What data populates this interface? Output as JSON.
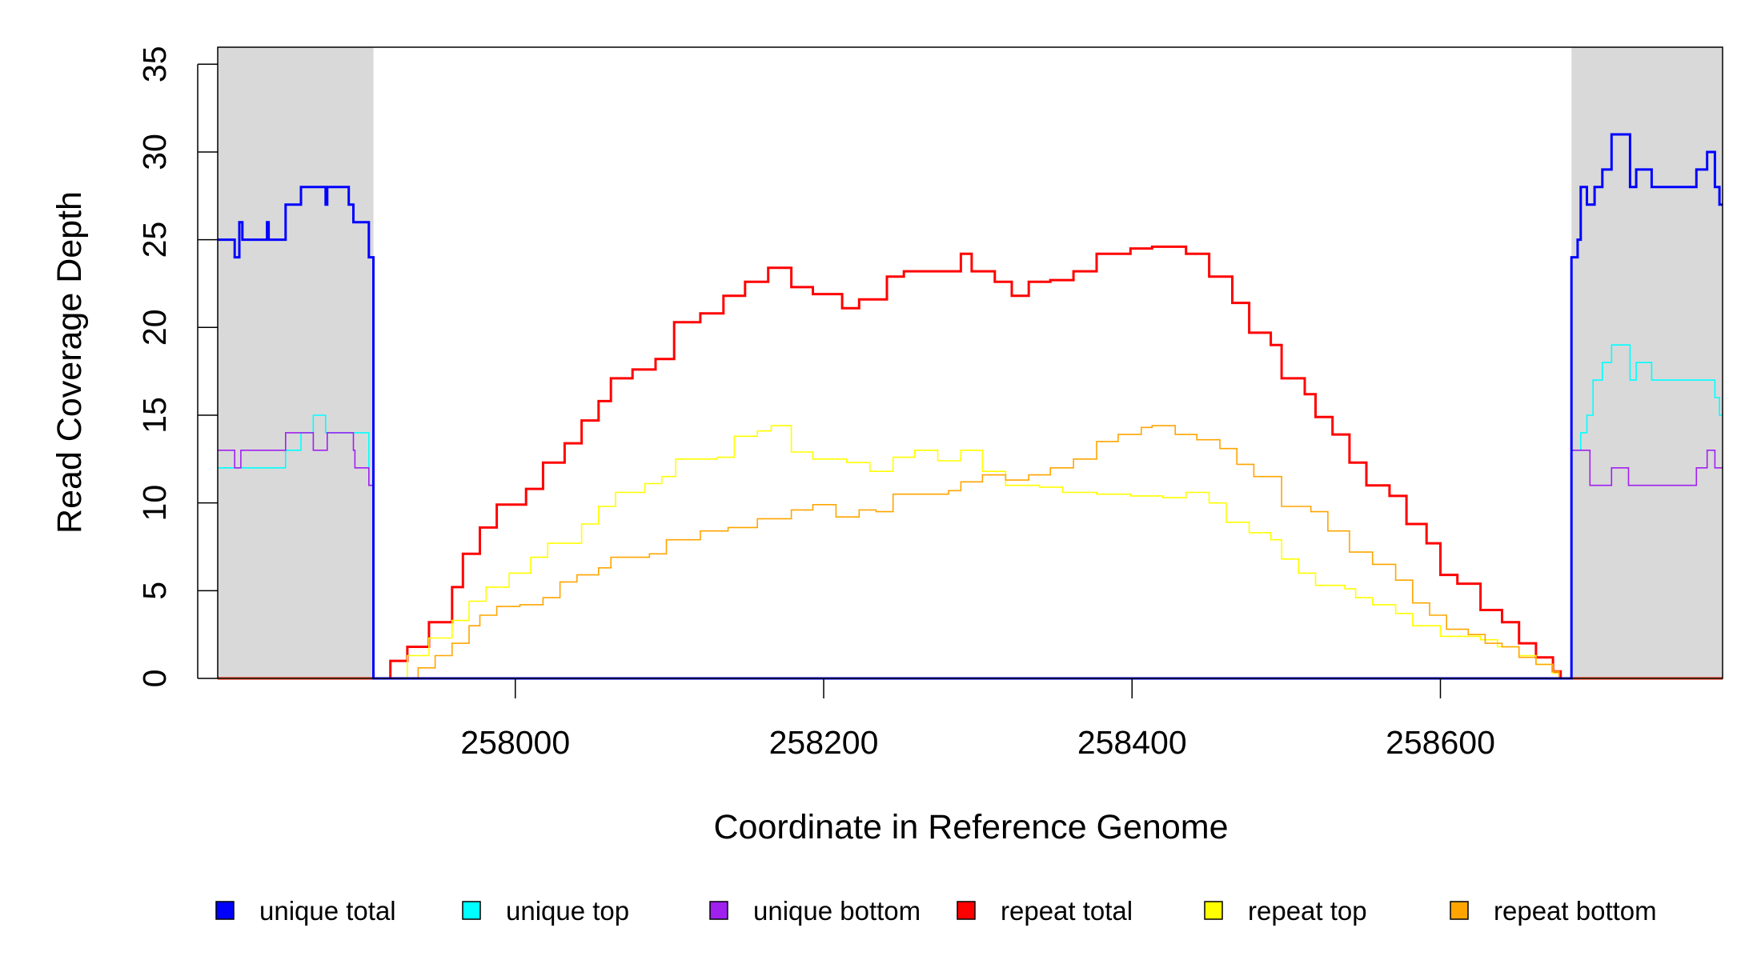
{
  "chart_data": {
    "type": "line",
    "title": "",
    "xlabel": "Coordinate in Reference Genome",
    "ylabel": "Read Coverage Depth",
    "xlim": [
      257807,
      258783
    ],
    "ylim": [
      0,
      35.97
    ],
    "x_ticks": [
      258000,
      258200,
      258400,
      258600
    ],
    "x_tick_labels": [
      "258000",
      "258200",
      "258400",
      "258600"
    ],
    "y_ticks": [
      0,
      5,
      10,
      15,
      20,
      25,
      30,
      35
    ],
    "y_tick_labels": [
      "0",
      "5",
      "10",
      "15",
      "20",
      "25",
      "30",
      "35"
    ],
    "grid": false,
    "legend_placement": "bottom",
    "shaded_regions": [
      [
        257807,
        257908
      ],
      [
        258685,
        258783
      ]
    ],
    "shade_color": "#d9d9d9",
    "step": true,
    "series": [
      {
        "name": "repeat total",
        "color": "#ff0000",
        "width": 3,
        "points": [
          [
            257807,
            0
          ],
          [
            257916,
            0
          ],
          [
            257919,
            1
          ],
          [
            257930,
            1.8
          ],
          [
            257944,
            3.2
          ],
          [
            257959,
            5.2
          ],
          [
            257966,
            7.1
          ],
          [
            257977,
            8.6
          ],
          [
            257988,
            9.9
          ],
          [
            258007,
            10.8
          ],
          [
            258018,
            12.3
          ],
          [
            258032,
            13.4
          ],
          [
            258043,
            14.7
          ],
          [
            258054,
            15.8
          ],
          [
            258062,
            17.1
          ],
          [
            258076,
            17.6
          ],
          [
            258091,
            18.2
          ],
          [
            258103,
            20.3
          ],
          [
            258120,
            20.8
          ],
          [
            258135,
            21.8
          ],
          [
            258149,
            22.6
          ],
          [
            258164,
            23.4
          ],
          [
            258179,
            22.3
          ],
          [
            258193,
            21.9
          ],
          [
            258212,
            21.1
          ],
          [
            258223,
            21.6
          ],
          [
            258241,
            22.9
          ],
          [
            258252,
            23.2
          ],
          [
            258267,
            23.2
          ],
          [
            258289,
            24.2
          ],
          [
            258296,
            23.2
          ],
          [
            258311,
            22.6
          ],
          [
            258322,
            21.8
          ],
          [
            258333,
            22.6
          ],
          [
            258347,
            22.7
          ],
          [
            258362,
            23.2
          ],
          [
            258377,
            24.2
          ],
          [
            258399,
            24.5
          ],
          [
            258413,
            24.6
          ],
          [
            258435,
            24.2
          ],
          [
            258450,
            22.9
          ],
          [
            258465,
            21.4
          ],
          [
            258476,
            19.7
          ],
          [
            258490,
            19.0
          ],
          [
            258497,
            17.1
          ],
          [
            258512,
            16.2
          ],
          [
            258519,
            14.9
          ],
          [
            258530,
            13.9
          ],
          [
            258541,
            12.3
          ],
          [
            258552,
            11.0
          ],
          [
            258567,
            10.4
          ],
          [
            258578,
            8.8
          ],
          [
            258591,
            7.7
          ],
          [
            258600,
            5.9
          ],
          [
            258611,
            5.4
          ],
          [
            258626,
            3.9
          ],
          [
            258640,
            3.2
          ],
          [
            258651,
            2.0
          ],
          [
            258662,
            1.2
          ],
          [
            258673,
            0.4
          ],
          [
            258678,
            0
          ]
        ]
      },
      {
        "name": "repeat top",
        "color": "#ffff00",
        "width": 1.6,
        "points": [
          [
            257807,
            0
          ],
          [
            257917,
            0
          ],
          [
            257930,
            1.3
          ],
          [
            257944,
            2.3
          ],
          [
            257959,
            3.3
          ],
          [
            257970,
            4.4
          ],
          [
            257981,
            5.2
          ],
          [
            257996,
            6.0
          ],
          [
            258010,
            6.9
          ],
          [
            258021,
            7.7
          ],
          [
            258043,
            8.8
          ],
          [
            258054,
            9.8
          ],
          [
            258065,
            10.6
          ],
          [
            258084,
            11.1
          ],
          [
            258095,
            11.5
          ],
          [
            258104,
            12.5
          ],
          [
            258131,
            12.6
          ],
          [
            258142,
            13.8
          ],
          [
            258157,
            14.1
          ],
          [
            258166,
            14.4
          ],
          [
            258179,
            12.9
          ],
          [
            258193,
            12.5
          ],
          [
            258215,
            12.3
          ],
          [
            258230,
            11.8
          ],
          [
            258245,
            12.6
          ],
          [
            258259,
            13.0
          ],
          [
            258274,
            12.4
          ],
          [
            258289,
            13.0
          ],
          [
            258303,
            11.8
          ],
          [
            258318,
            11.0
          ],
          [
            258340,
            10.9
          ],
          [
            258355,
            10.6
          ],
          [
            258377,
            10.5
          ],
          [
            258399,
            10.4
          ],
          [
            258420,
            10.3
          ],
          [
            258435,
            10.6
          ],
          [
            258450,
            10.0
          ],
          [
            258461,
            8.9
          ],
          [
            258476,
            8.3
          ],
          [
            258490,
            7.9
          ],
          [
            258497,
            6.8
          ],
          [
            258508,
            6.0
          ],
          [
            258519,
            5.3
          ],
          [
            258538,
            5.1
          ],
          [
            258545,
            4.6
          ],
          [
            258556,
            4.2
          ],
          [
            258571,
            3.7
          ],
          [
            258582,
            3.0
          ],
          [
            258600,
            2.4
          ],
          [
            258626,
            2.2
          ],
          [
            258637,
            1.8
          ],
          [
            258651,
            1.3
          ],
          [
            258662,
            0.8
          ],
          [
            258673,
            0.3
          ],
          [
            258677,
            0
          ]
        ]
      },
      {
        "name": "repeat bottom",
        "color": "#ffa500",
        "width": 1.6,
        "points": [
          [
            257807,
            0
          ],
          [
            257926,
            0
          ],
          [
            257937,
            0.6
          ],
          [
            257948,
            1.3
          ],
          [
            257959,
            2.0
          ],
          [
            257970,
            3.0
          ],
          [
            257977,
            3.6
          ],
          [
            257988,
            4.1
          ],
          [
            258003,
            4.2
          ],
          [
            258018,
            4.6
          ],
          [
            258029,
            5.5
          ],
          [
            258040,
            5.9
          ],
          [
            258054,
            6.3
          ],
          [
            258062,
            6.9
          ],
          [
            258087,
            7.1
          ],
          [
            258098,
            7.9
          ],
          [
            258120,
            8.4
          ],
          [
            258138,
            8.6
          ],
          [
            258157,
            9.1
          ],
          [
            258179,
            9.6
          ],
          [
            258193,
            9.9
          ],
          [
            258208,
            9.2
          ],
          [
            258223,
            9.6
          ],
          [
            258234,
            9.5
          ],
          [
            258245,
            10.5
          ],
          [
            258267,
            10.5
          ],
          [
            258281,
            10.7
          ],
          [
            258289,
            11.2
          ],
          [
            258303,
            11.6
          ],
          [
            258318,
            11.3
          ],
          [
            258333,
            11.6
          ],
          [
            258347,
            12.0
          ],
          [
            258362,
            12.5
          ],
          [
            258377,
            13.5
          ],
          [
            258391,
            13.9
          ],
          [
            258406,
            14.3
          ],
          [
            258413,
            14.4
          ],
          [
            258428,
            13.9
          ],
          [
            258442,
            13.6
          ],
          [
            258457,
            13.1
          ],
          [
            258468,
            12.2
          ],
          [
            258479,
            11.5
          ],
          [
            258497,
            9.8
          ],
          [
            258516,
            9.5
          ],
          [
            258527,
            8.4
          ],
          [
            258541,
            7.2
          ],
          [
            258556,
            6.5
          ],
          [
            258571,
            5.6
          ],
          [
            258582,
            4.3
          ],
          [
            258593,
            3.6
          ],
          [
            258604,
            2.8
          ],
          [
            258618,
            2.5
          ],
          [
            258629,
            2.0
          ],
          [
            258640,
            1.8
          ],
          [
            258651,
            1.2
          ],
          [
            258662,
            0.8
          ],
          [
            258673,
            0.4
          ],
          [
            258677,
            0
          ]
        ]
      },
      {
        "name": "unique top",
        "color": "#00ffff",
        "width": 1.6,
        "points": [
          [
            257807,
            12
          ],
          [
            257851,
            13
          ],
          [
            257861,
            14
          ],
          [
            257869,
            15
          ],
          [
            257877,
            14
          ],
          [
            257905,
            11
          ],
          [
            257908,
            0
          ],
          [
            258685,
            13
          ],
          [
            258691,
            14
          ],
          [
            258695,
            15
          ],
          [
            258699,
            17
          ],
          [
            258705,
            18
          ],
          [
            258711,
            19
          ],
          [
            258723,
            17
          ],
          [
            258727,
            18
          ],
          [
            258737,
            17
          ],
          [
            258778,
            16
          ],
          [
            258781,
            15
          ]
        ]
      },
      {
        "name": "unique bottom",
        "color": "#a020f0",
        "width": 1.6,
        "points": [
          [
            257807,
            13
          ],
          [
            257818,
            12
          ],
          [
            257822,
            13
          ],
          [
            257851,
            14
          ],
          [
            257869,
            13
          ],
          [
            257878,
            14
          ],
          [
            257895,
            13
          ],
          [
            257896,
            12
          ],
          [
            257905,
            11
          ],
          [
            257908,
            0
          ],
          [
            258685,
            13
          ],
          [
            258697,
            11
          ],
          [
            258711,
            12
          ],
          [
            258722,
            11
          ],
          [
            258766,
            12
          ],
          [
            258773,
            13
          ],
          [
            258778,
            12
          ]
        ]
      },
      {
        "name": "unique total",
        "color": "#0000ff",
        "width": 3,
        "points": [
          [
            257807,
            25
          ],
          [
            257818,
            24
          ],
          [
            257821,
            26
          ],
          [
            257823,
            25
          ],
          [
            257839,
            26
          ],
          [
            257840,
            25
          ],
          [
            257851,
            27
          ],
          [
            257861,
            28
          ],
          [
            257877,
            27
          ],
          [
            257878,
            28
          ],
          [
            257892,
            27
          ],
          [
            257895,
            26
          ],
          [
            257905,
            24
          ],
          [
            257908,
            0
          ],
          [
            258685,
            24
          ],
          [
            258689,
            25
          ],
          [
            258691,
            28
          ],
          [
            258695,
            27
          ],
          [
            258700,
            28
          ],
          [
            258705,
            29
          ],
          [
            258711,
            31
          ],
          [
            258723,
            28
          ],
          [
            258727,
            29
          ],
          [
            258737,
            28
          ],
          [
            258766,
            29
          ],
          [
            258773,
            30
          ],
          [
            258778,
            28
          ],
          [
            258781,
            27
          ]
        ]
      }
    ],
    "legend": [
      {
        "label": "unique total",
        "color": "#0000ff"
      },
      {
        "label": "unique top",
        "color": "#00ffff"
      },
      {
        "label": "unique bottom",
        "color": "#a020f0"
      },
      {
        "label": "repeat total",
        "color": "#ff0000"
      },
      {
        "label": "repeat top",
        "color": "#ffff00"
      },
      {
        "label": "repeat bottom",
        "color": "#ffa500"
      }
    ]
  }
}
